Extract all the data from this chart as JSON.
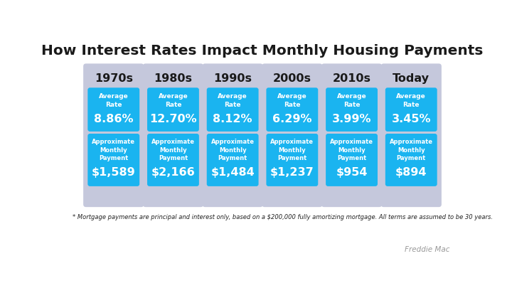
{
  "title": "How Interest Rates Impact Monthly Housing Payments",
  "decades": [
    "1970s",
    "1980s",
    "1990s",
    "2000s",
    "2010s",
    "Today"
  ],
  "rates": [
    "8.86%",
    "12.70%",
    "8.12%",
    "6.29%",
    "3.99%",
    "3.45%"
  ],
  "payments": [
    "$1,589",
    "$2,166",
    "$1,484",
    "$1,237",
    "$954",
    "$894"
  ],
  "footnote": "* Mortgage payments are principal and interest only, based on a $200,000 fully amortizing mortgage. All terms are assumed to be 30 years.",
  "source": "Freddie Mac",
  "bg_color": "#ffffff",
  "card_color": "#c5c8dc",
  "blue_box_color": "#1ab4f0",
  "title_color": "#1a1a1a",
  "card_text_color": "#1a1a1a",
  "blue_text_color": "#ffffff",
  "footnote_color": "#222222",
  "source_color": "#999999"
}
